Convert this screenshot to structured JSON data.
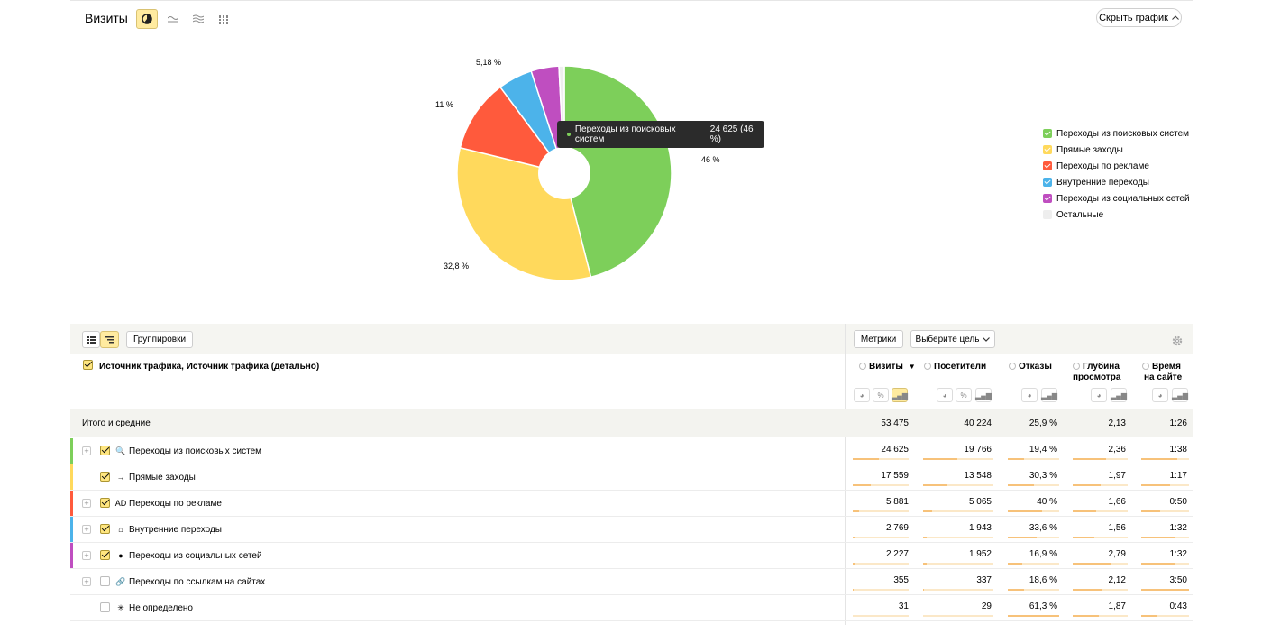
{
  "header": {
    "title": "Визиты",
    "hide_chart_label": "Скрыть график"
  },
  "chart_data": {
    "type": "pie",
    "categories": [
      "Переходы из поисковых систем",
      "Прямые заходы",
      "Переходы по рекламе",
      "Внутренние переходы",
      "Переходы из социальных сетей",
      "Остальные"
    ],
    "values": [
      46,
      32.8,
      11,
      5.18,
      4.2,
      0.8
    ],
    "colors": [
      "#7dcf5a",
      "#ffd95c",
      "#ff5a3c",
      "#4cb3ea",
      "#bf4ec0",
      "#eeeeee"
    ],
    "slice_labels": [
      "46 %",
      "32,8 %",
      "11 %",
      "5,18 %",
      "",
      ""
    ],
    "legend": [
      "Переходы из поисковых систем",
      "Прямые заходы",
      "Переходы по рекламе",
      "Внутренние переходы",
      "Переходы из социальных сетей",
      "Остальные"
    ],
    "legend_placement": "right"
  },
  "tooltip": {
    "label": "Переходы из поисковых систем",
    "value": "24 625 (46 %)"
  },
  "toolbar": {
    "groupings_label": "Группировки",
    "metrics_label": "Метрики",
    "goal_label": "Выберите цель"
  },
  "table": {
    "dimension_title": "Источник трафика, Источник трафика (детально)",
    "columns": [
      {
        "title": "Визиты",
        "line2": "",
        "sorted": "▼"
      },
      {
        "title": "Посетители",
        "line2": ""
      },
      {
        "title": "Отказы",
        "line2": ""
      },
      {
        "title": "Глубина",
        "line2": "просмотра"
      },
      {
        "title": "Время",
        "line2": "на сайте"
      }
    ],
    "total": {
      "label": "Итого и средние",
      "values": [
        "53 475",
        "40 224",
        "25,9 %",
        "2,13",
        "1:26"
      ]
    },
    "rows": [
      {
        "label": "Переходы из поисковых систем",
        "values": [
          "24 625",
          "19 766",
          "19,4 %",
          "2,36",
          "1:38"
        ],
        "ratios": [
          0.46,
          0.49,
          0.32,
          0.6,
          0.75
        ],
        "color": "#7dcf5a",
        "checked": true,
        "expand": true,
        "icon": "search-icon",
        "icon_glyph": "🔍"
      },
      {
        "label": "Прямые заходы",
        "values": [
          "17 559",
          "13 548",
          "30,3 %",
          "1,97",
          "1:17"
        ],
        "ratios": [
          0.33,
          0.34,
          0.5,
          0.5,
          0.6
        ],
        "color": "#ffd95c",
        "checked": true,
        "expand": false,
        "icon": "direct-icon",
        "icon_glyph": "→"
      },
      {
        "label": "Переходы по рекламе",
        "values": [
          "5 881",
          "5 065",
          "40 %",
          "1,66",
          "0:50"
        ],
        "ratios": [
          0.11,
          0.13,
          0.66,
          0.42,
          0.39
        ],
        "color": "#ff5a3c",
        "checked": true,
        "expand": true,
        "icon": "ad-icon",
        "icon_glyph": "AD"
      },
      {
        "label": "Внутренние переходы",
        "values": [
          "2 769",
          "1 943",
          "33,6 %",
          "1,56",
          "1:32"
        ],
        "ratios": [
          0.05,
          0.05,
          0.56,
          0.4,
          0.72
        ],
        "color": "#4cb3ea",
        "checked": true,
        "expand": true,
        "icon": "home-icon",
        "icon_glyph": "⌂"
      },
      {
        "label": "Переходы из социальных сетей",
        "values": [
          "2 227",
          "1 952",
          "16,9 %",
          "2,79",
          "1:32"
        ],
        "ratios": [
          0.04,
          0.05,
          0.28,
          0.71,
          0.72
        ],
        "color": "#bf4ec0",
        "checked": true,
        "expand": true,
        "icon": "social-icon",
        "icon_glyph": "●"
      },
      {
        "label": "Переходы по ссылкам на сайтах",
        "values": [
          "355",
          "337",
          "18,6 %",
          "2,12",
          "3:50"
        ],
        "ratios": [
          0.01,
          0.01,
          0.31,
          0.54,
          1.0
        ],
        "color": "",
        "checked": false,
        "expand": true,
        "icon": "link-icon",
        "icon_glyph": "🔗"
      },
      {
        "label": "Не определено",
        "values": [
          "31",
          "29",
          "61,3 %",
          "1,87",
          "0:43"
        ],
        "ratios": [
          0.0,
          0.0,
          1.0,
          0.48,
          0.33
        ],
        "color": "",
        "checked": false,
        "expand": false,
        "icon": "undefined-icon",
        "icon_glyph": "✳"
      }
    ]
  }
}
